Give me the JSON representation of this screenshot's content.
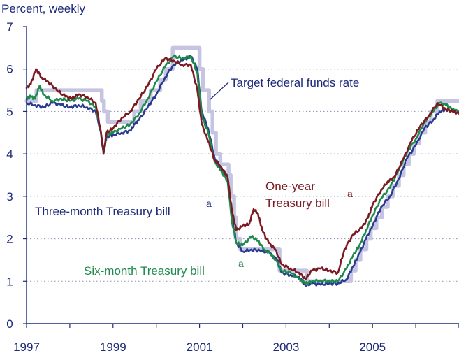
{
  "chart_data": {
    "type": "line",
    "ylabel": "Percent, weekly",
    "xlim": [
      1997,
      2007
    ],
    "ylim": [
      0,
      7
    ],
    "x_ticks": [
      "1997",
      "1999",
      "2001",
      "2003",
      "2005"
    ],
    "y_ticks": [
      "0",
      "1",
      "2",
      "3",
      "4",
      "5",
      "6",
      "7"
    ],
    "grid": "horizontal dotted",
    "annotations": {
      "target": "Target federal funds rate",
      "three_month": "Three-month Treasury bill",
      "six_month": "Six-month Treasury bill",
      "one_year_line1": "One-year",
      "one_year_line2": "Treasury bill",
      "footnote_marker": "a"
    },
    "series": [
      {
        "name": "Target federal funds rate",
        "color": "#c5c5e2",
        "step": true,
        "points": [
          [
            1997.0,
            5.25
          ],
          [
            1997.23,
            5.5
          ],
          [
            1998.74,
            5.25
          ],
          [
            1998.79,
            5.0
          ],
          [
            1998.88,
            4.75
          ],
          [
            1999.49,
            5.0
          ],
          [
            1999.64,
            5.25
          ],
          [
            1999.87,
            5.5
          ],
          [
            2000.09,
            5.75
          ],
          [
            2000.22,
            6.0
          ],
          [
            2000.38,
            6.5
          ],
          [
            2001.0,
            6.0
          ],
          [
            2001.08,
            5.5
          ],
          [
            2001.22,
            5.0
          ],
          [
            2001.3,
            4.5
          ],
          [
            2001.38,
            4.0
          ],
          [
            2001.48,
            3.75
          ],
          [
            2001.67,
            3.5
          ],
          [
            2001.72,
            3.0
          ],
          [
            2001.8,
            2.5
          ],
          [
            2001.85,
            2.0
          ],
          [
            2001.94,
            1.75
          ],
          [
            2002.85,
            1.25
          ],
          [
            2003.48,
            1.0
          ],
          [
            2004.5,
            1.25
          ],
          [
            2004.61,
            1.5
          ],
          [
            2004.72,
            1.75
          ],
          [
            2004.86,
            2.0
          ],
          [
            2004.96,
            2.25
          ],
          [
            2005.09,
            2.5
          ],
          [
            2005.22,
            2.75
          ],
          [
            2005.35,
            3.0
          ],
          [
            2005.47,
            3.25
          ],
          [
            2005.61,
            3.5
          ],
          [
            2005.72,
            3.75
          ],
          [
            2005.84,
            4.0
          ],
          [
            2005.96,
            4.25
          ],
          [
            2006.08,
            4.5
          ],
          [
            2006.22,
            4.75
          ],
          [
            2006.35,
            5.0
          ],
          [
            2006.5,
            5.25
          ],
          [
            2007.0,
            5.25
          ]
        ]
      },
      {
        "name": "Three-month Treasury bill",
        "color": "#283b8f",
        "points": [
          [
            1997.0,
            5.2
          ],
          [
            1997.2,
            5.15
          ],
          [
            1997.4,
            5.1
          ],
          [
            1997.6,
            5.2
          ],
          [
            1997.8,
            5.15
          ],
          [
            1998.0,
            5.1
          ],
          [
            1998.2,
            5.15
          ],
          [
            1998.4,
            5.1
          ],
          [
            1998.6,
            5.0
          ],
          [
            1998.72,
            4.5
          ],
          [
            1998.78,
            4.0
          ],
          [
            1998.85,
            4.4
          ],
          [
            1999.0,
            4.45
          ],
          [
            1999.2,
            4.5
          ],
          [
            1999.4,
            4.55
          ],
          [
            1999.5,
            4.7
          ],
          [
            1999.6,
            4.8
          ],
          [
            1999.8,
            5.1
          ],
          [
            2000.0,
            5.4
          ],
          [
            2000.2,
            5.8
          ],
          [
            2000.4,
            6.1
          ],
          [
            2000.6,
            6.2
          ],
          [
            2000.8,
            6.3
          ],
          [
            2000.95,
            6.0
          ],
          [
            2001.05,
            5.0
          ],
          [
            2001.2,
            4.6
          ],
          [
            2001.35,
            3.9
          ],
          [
            2001.5,
            3.65
          ],
          [
            2001.65,
            3.45
          ],
          [
            2001.75,
            2.5
          ],
          [
            2001.85,
            1.9
          ],
          [
            2002.0,
            1.7
          ],
          [
            2002.2,
            1.75
          ],
          [
            2002.4,
            1.72
          ],
          [
            2002.6,
            1.68
          ],
          [
            2002.8,
            1.5
          ],
          [
            2002.9,
            1.2
          ],
          [
            2003.1,
            1.15
          ],
          [
            2003.3,
            1.1
          ],
          [
            2003.45,
            0.9
          ],
          [
            2003.6,
            0.95
          ],
          [
            2003.8,
            0.92
          ],
          [
            2004.0,
            0.95
          ],
          [
            2004.2,
            0.95
          ],
          [
            2004.4,
            1.05
          ],
          [
            2004.55,
            1.35
          ],
          [
            2004.7,
            1.65
          ],
          [
            2004.85,
            2.0
          ],
          [
            2005.0,
            2.3
          ],
          [
            2005.2,
            2.75
          ],
          [
            2005.4,
            3.0
          ],
          [
            2005.6,
            3.4
          ],
          [
            2005.8,
            3.9
          ],
          [
            2006.0,
            4.2
          ],
          [
            2006.2,
            4.6
          ],
          [
            2006.4,
            4.8
          ],
          [
            2006.55,
            5.0
          ],
          [
            2006.7,
            5.05
          ],
          [
            2006.85,
            5.0
          ],
          [
            2007.0,
            4.95
          ]
        ]
      },
      {
        "name": "Six-month Treasury bill",
        "color": "#1e8a4c",
        "points": [
          [
            1997.0,
            5.3
          ],
          [
            1997.1,
            5.35
          ],
          [
            1997.2,
            5.3
          ],
          [
            1997.3,
            5.6
          ],
          [
            1997.4,
            5.4
          ],
          [
            1997.6,
            5.25
          ],
          [
            1997.8,
            5.3
          ],
          [
            1998.0,
            5.25
          ],
          [
            1998.2,
            5.3
          ],
          [
            1998.4,
            5.25
          ],
          [
            1998.6,
            5.1
          ],
          [
            1998.72,
            4.5
          ],
          [
            1998.78,
            4.05
          ],
          [
            1998.85,
            4.45
          ],
          [
            1999.0,
            4.5
          ],
          [
            1999.2,
            4.6
          ],
          [
            1999.4,
            4.7
          ],
          [
            1999.6,
            4.95
          ],
          [
            1999.8,
            5.3
          ],
          [
            2000.0,
            5.7
          ],
          [
            2000.2,
            6.05
          ],
          [
            2000.4,
            6.3
          ],
          [
            2000.6,
            6.25
          ],
          [
            2000.8,
            6.3
          ],
          [
            2000.95,
            5.9
          ],
          [
            2001.05,
            4.9
          ],
          [
            2001.2,
            4.5
          ],
          [
            2001.35,
            3.8
          ],
          [
            2001.5,
            3.6
          ],
          [
            2001.65,
            3.35
          ],
          [
            2001.75,
            2.4
          ],
          [
            2001.85,
            1.9
          ],
          [
            2002.0,
            1.85
          ],
          [
            2002.2,
            2.05
          ],
          [
            2002.35,
            1.95
          ],
          [
            2002.5,
            1.75
          ],
          [
            2002.7,
            1.6
          ],
          [
            2002.9,
            1.25
          ],
          [
            2003.1,
            1.2
          ],
          [
            2003.3,
            1.05
          ],
          [
            2003.45,
            0.95
          ],
          [
            2003.6,
            1.0
          ],
          [
            2003.8,
            1.02
          ],
          [
            2004.0,
            1.0
          ],
          [
            2004.2,
            1.0
          ],
          [
            2004.4,
            1.3
          ],
          [
            2004.55,
            1.6
          ],
          [
            2004.7,
            1.85
          ],
          [
            2004.85,
            2.2
          ],
          [
            2005.0,
            2.55
          ],
          [
            2005.2,
            2.95
          ],
          [
            2005.4,
            3.2
          ],
          [
            2005.6,
            3.6
          ],
          [
            2005.8,
            4.05
          ],
          [
            2006.0,
            4.35
          ],
          [
            2006.2,
            4.75
          ],
          [
            2006.4,
            5.0
          ],
          [
            2006.55,
            5.2
          ],
          [
            2006.7,
            5.15
          ],
          [
            2006.85,
            5.05
          ],
          [
            2007.0,
            5.0
          ]
        ]
      },
      {
        "name": "One-year Treasury bill",
        "color": "#7b1a22",
        "points": [
          [
            1997.0,
            5.55
          ],
          [
            1997.1,
            5.65
          ],
          [
            1997.22,
            6.0
          ],
          [
            1997.35,
            5.8
          ],
          [
            1997.5,
            5.7
          ],
          [
            1997.7,
            5.5
          ],
          [
            1997.9,
            5.35
          ],
          [
            1998.05,
            5.3
          ],
          [
            1998.2,
            5.4
          ],
          [
            1998.4,
            5.35
          ],
          [
            1998.6,
            5.2
          ],
          [
            1998.72,
            4.5
          ],
          [
            1998.78,
            4.0
          ],
          [
            1998.85,
            4.5
          ],
          [
            1999.0,
            4.6
          ],
          [
            1999.2,
            4.85
          ],
          [
            1999.4,
            5.0
          ],
          [
            1999.6,
            5.3
          ],
          [
            1999.8,
            5.6
          ],
          [
            2000.0,
            6.0
          ],
          [
            2000.2,
            6.25
          ],
          [
            2000.4,
            6.2
          ],
          [
            2000.6,
            6.1
          ],
          [
            2000.8,
            6.1
          ],
          [
            2000.95,
            5.5
          ],
          [
            2001.05,
            4.7
          ],
          [
            2001.2,
            4.3
          ],
          [
            2001.35,
            3.85
          ],
          [
            2001.5,
            3.7
          ],
          [
            2001.65,
            3.45
          ],
          [
            2001.75,
            2.65
          ],
          [
            2001.85,
            2.2
          ],
          [
            2002.0,
            2.3
          ],
          [
            2002.15,
            2.35
          ],
          [
            2002.25,
            2.7
          ],
          [
            2002.35,
            2.6
          ],
          [
            2002.45,
            2.2
          ],
          [
            2002.6,
            1.9
          ],
          [
            2002.75,
            1.75
          ],
          [
            2002.9,
            1.4
          ],
          [
            2003.1,
            1.3
          ],
          [
            2003.3,
            1.2
          ],
          [
            2003.45,
            1.05
          ],
          [
            2003.6,
            1.25
          ],
          [
            2003.8,
            1.3
          ],
          [
            2004.0,
            1.25
          ],
          [
            2004.2,
            1.2
          ],
          [
            2004.35,
            1.75
          ],
          [
            2004.55,
            2.1
          ],
          [
            2004.75,
            2.25
          ],
          [
            2004.9,
            2.5
          ],
          [
            2005.0,
            2.8
          ],
          [
            2005.2,
            3.15
          ],
          [
            2005.35,
            3.35
          ],
          [
            2005.5,
            3.45
          ],
          [
            2005.7,
            3.85
          ],
          [
            2005.9,
            4.3
          ],
          [
            2006.1,
            4.65
          ],
          [
            2006.3,
            4.9
          ],
          [
            2006.5,
            5.2
          ],
          [
            2006.7,
            5.05
          ],
          [
            2006.85,
            5.0
          ],
          [
            2007.0,
            4.95
          ]
        ]
      }
    ]
  }
}
